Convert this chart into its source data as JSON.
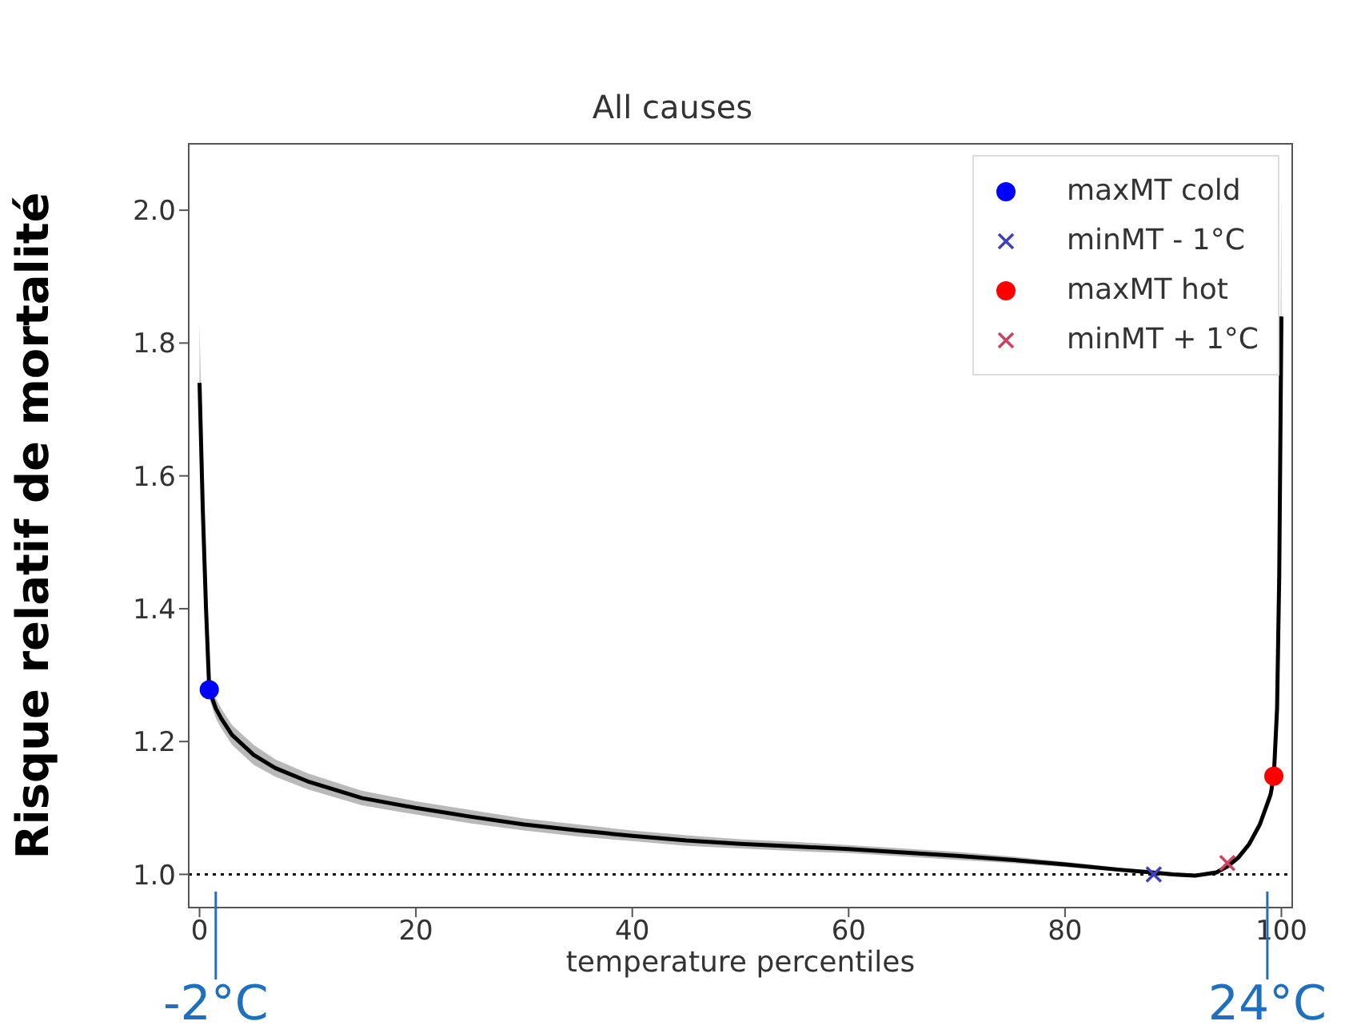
{
  "chart_data": {
    "type": "line",
    "title": "All causes",
    "xlabel": "temperature percentiles",
    "ylabel": "Risque relatif de mortalité",
    "xlim": [
      -1,
      101
    ],
    "ylim": [
      0.95,
      2.1
    ],
    "xticks": [
      0,
      20,
      40,
      60,
      80,
      100
    ],
    "yticks": [
      {
        "value": 1,
        "label": "1.0"
      },
      1.2,
      1.4,
      1.6,
      1.8,
      {
        "value": 2,
        "label": "2.0"
      }
    ],
    "grid": false,
    "legend": "top right",
    "ref_lines": [
      {
        "axis": "y",
        "value": 1,
        "color": "#000000",
        "line_style": "dotted"
      }
    ],
    "annotations": [
      {
        "text": "-2°C",
        "x": 1.5
      },
      {
        "text": "24°C",
        "x": 98.7
      }
    ],
    "series": [
      {
        "color": "#000000",
        "marker": "none",
        "line_style": "solid",
        "x": [
          0,
          0.3,
          0.6,
          0.9,
          1.5,
          2,
          3,
          5,
          7,
          10,
          15,
          20,
          25,
          30,
          35,
          40,
          45,
          50,
          55,
          60,
          65,
          70,
          75,
          80,
          85,
          88,
          90,
          92,
          94,
          95,
          96,
          97,
          98,
          99,
          99.3,
          99.6,
          99.8,
          100
        ],
        "values": [
          1.74,
          1.55,
          1.4,
          1.278,
          1.25,
          1.235,
          1.21,
          1.18,
          1.16,
          1.14,
          1.115,
          1.1,
          1.087,
          1.075,
          1.066,
          1.058,
          1.051,
          1.046,
          1.042,
          1.038,
          1.033,
          1.028,
          1.022,
          1.015,
          1.007,
          1.003,
          1.0,
          0.998,
          1.003,
          1.012,
          1.025,
          1.045,
          1.075,
          1.12,
          1.148,
          1.25,
          1.45,
          1.84
        ],
        "lower": [
          1.7,
          1.52,
          1.38,
          1.265,
          1.235,
          1.22,
          1.195,
          1.165,
          1.147,
          1.128,
          1.104,
          1.09,
          1.077,
          1.066,
          1.057,
          1.05,
          1.043,
          1.039,
          1.035,
          1.032,
          1.027,
          1.022,
          1.017,
          1.011,
          1.004,
          1.0,
          0.997,
          0.995,
          1.0,
          1.008,
          1.02,
          1.04,
          1.068,
          1.11,
          1.137,
          1.23,
          1.41,
          1.8
        ],
        "upper": [
          1.83,
          1.59,
          1.42,
          1.29,
          1.265,
          1.25,
          1.225,
          1.195,
          1.173,
          1.152,
          1.126,
          1.11,
          1.097,
          1.084,
          1.075,
          1.066,
          1.059,
          1.053,
          1.049,
          1.044,
          1.039,
          1.034,
          1.027,
          1.019,
          1.01,
          1.006,
          1.003,
          1.001,
          1.006,
          1.016,
          1.03,
          1.05,
          1.082,
          1.13,
          1.16,
          1.27,
          1.49,
          2.03
        ]
      },
      {
        "type": "scatter",
        "name": "maxMT cold",
        "color": "#0000ff",
        "marker": "circle",
        "x": [
          0.9
        ],
        "values": [
          1.278
        ]
      },
      {
        "type": "scatter",
        "name": "minMT - 1°C",
        "color": "#3f3fbf",
        "marker": "cross",
        "x": [
          88.2
        ],
        "values": [
          1.0
        ]
      },
      {
        "type": "scatter",
        "name": "maxMT hot",
        "color": "#ff0000",
        "marker": "circle",
        "x": [
          99.3
        ],
        "values": [
          1.148
        ]
      },
      {
        "type": "scatter",
        "name": "minMT + 1°C",
        "color": "#d04060",
        "marker": "cross",
        "x": [
          95
        ],
        "values": [
          1.017
        ]
      }
    ]
  }
}
